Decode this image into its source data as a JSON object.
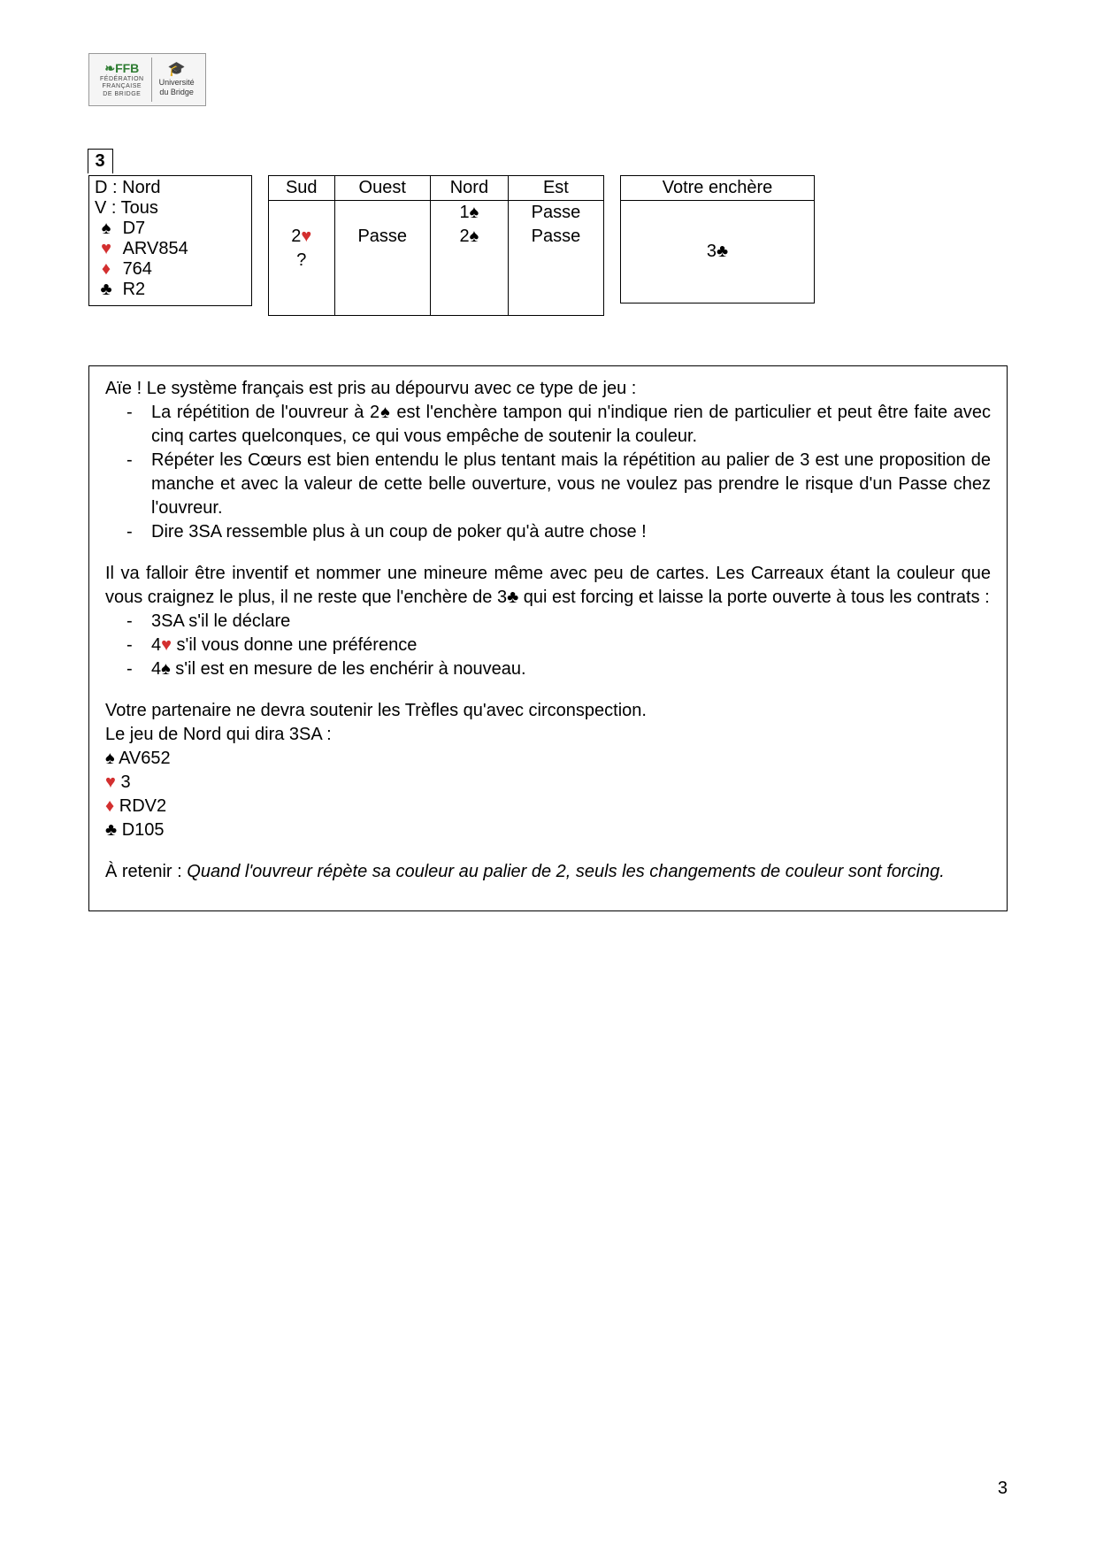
{
  "logo": {
    "ffb": "FFB",
    "ffb_sub1": "FÉDÉRATION",
    "ffb_sub2": "FRANÇAISE",
    "ffb_sub3": "DE BRIDGE",
    "univ1": "Université",
    "univ2": "du Bridge"
  },
  "suits": {
    "spade": "♠",
    "heart": "♥",
    "diamond": "♦",
    "club": "♣"
  },
  "board": {
    "number": "3",
    "dealer_label": "D :",
    "dealer": "Nord",
    "vul_label": "V :",
    "vul": "Tous",
    "hand": {
      "spades": "D7",
      "hearts": "ARV854",
      "diamonds": "764",
      "clubs": "R2"
    }
  },
  "bidding": {
    "headers": [
      "Sud",
      "Ouest",
      "Nord",
      "Est"
    ],
    "rows": [
      {
        "s": "",
        "o": "",
        "n": "1♠",
        "e": "Passe",
        "n_suit": "spade"
      },
      {
        "s": "2♥",
        "o": "Passe",
        "n": "2♠",
        "e": "Passe",
        "s_suit": "heart",
        "n_suit": "spade"
      },
      {
        "s": "?",
        "o": "",
        "n": "",
        "e": ""
      }
    ]
  },
  "answer": {
    "label": "Votre enchère",
    "bid_num": "3",
    "bid_suit": "club"
  },
  "explanation": {
    "intro": "Aïe ! Le système français est pris au dépourvu avec ce type de jeu :",
    "bullets1": [
      {
        "pre": "La répétition de l'ouvreur à 2",
        "suit": "spade",
        "post": " est l'enchère tampon qui n'indique rien de particulier et peut être faite avec cinq cartes quelconques, ce qui vous empêche de soutenir la couleur."
      },
      {
        "pre": "Répéter les Cœurs est bien entendu le plus tentant mais la répétition au palier de 3 est une proposition de manche et avec la valeur de cette belle ouverture, vous ne voulez pas prendre le risque d'un Passe chez l'ouvreur.",
        "suit": "",
        "post": ""
      },
      {
        "pre": "Dire 3SA ressemble plus à un coup de poker qu'à autre chose !",
        "suit": "",
        "post": ""
      }
    ],
    "para2_pre": "Il va falloir être inventif et nommer une mineure même avec peu de cartes. Les Carreaux étant la couleur que vous craignez le plus, il ne reste que l'enchère de 3",
    "para2_suit": "club",
    "para2_post": " qui est forcing et laisse la porte ouverte à tous les contrats :",
    "bullets2": [
      {
        "pre": "3SA s'il le déclare",
        "suit": "",
        "post": ""
      },
      {
        "pre": "4",
        "suit": "heart",
        "post": " s'il vous donne une préférence"
      },
      {
        "pre": "4",
        "suit": "spade",
        "post": " s'il est en mesure de les enchérir à nouveau."
      }
    ],
    "para3": "Votre partenaire ne devra soutenir les Trèfles qu'avec circonspection.",
    "para4": "Le jeu de Nord qui dira 3SA :",
    "nord_hand": {
      "spades": "AV652",
      "hearts": "3",
      "diamonds": "RDV2",
      "clubs": "D105"
    },
    "retain_label": "À retenir : ",
    "retain_text": "Quand l'ouvreur répète sa couleur au palier de 2, seuls les changements de couleur sont forcing."
  },
  "page_number": "3",
  "colors": {
    "red": "#d32f2f",
    "black": "#000000",
    "green": "#2e7d32"
  }
}
